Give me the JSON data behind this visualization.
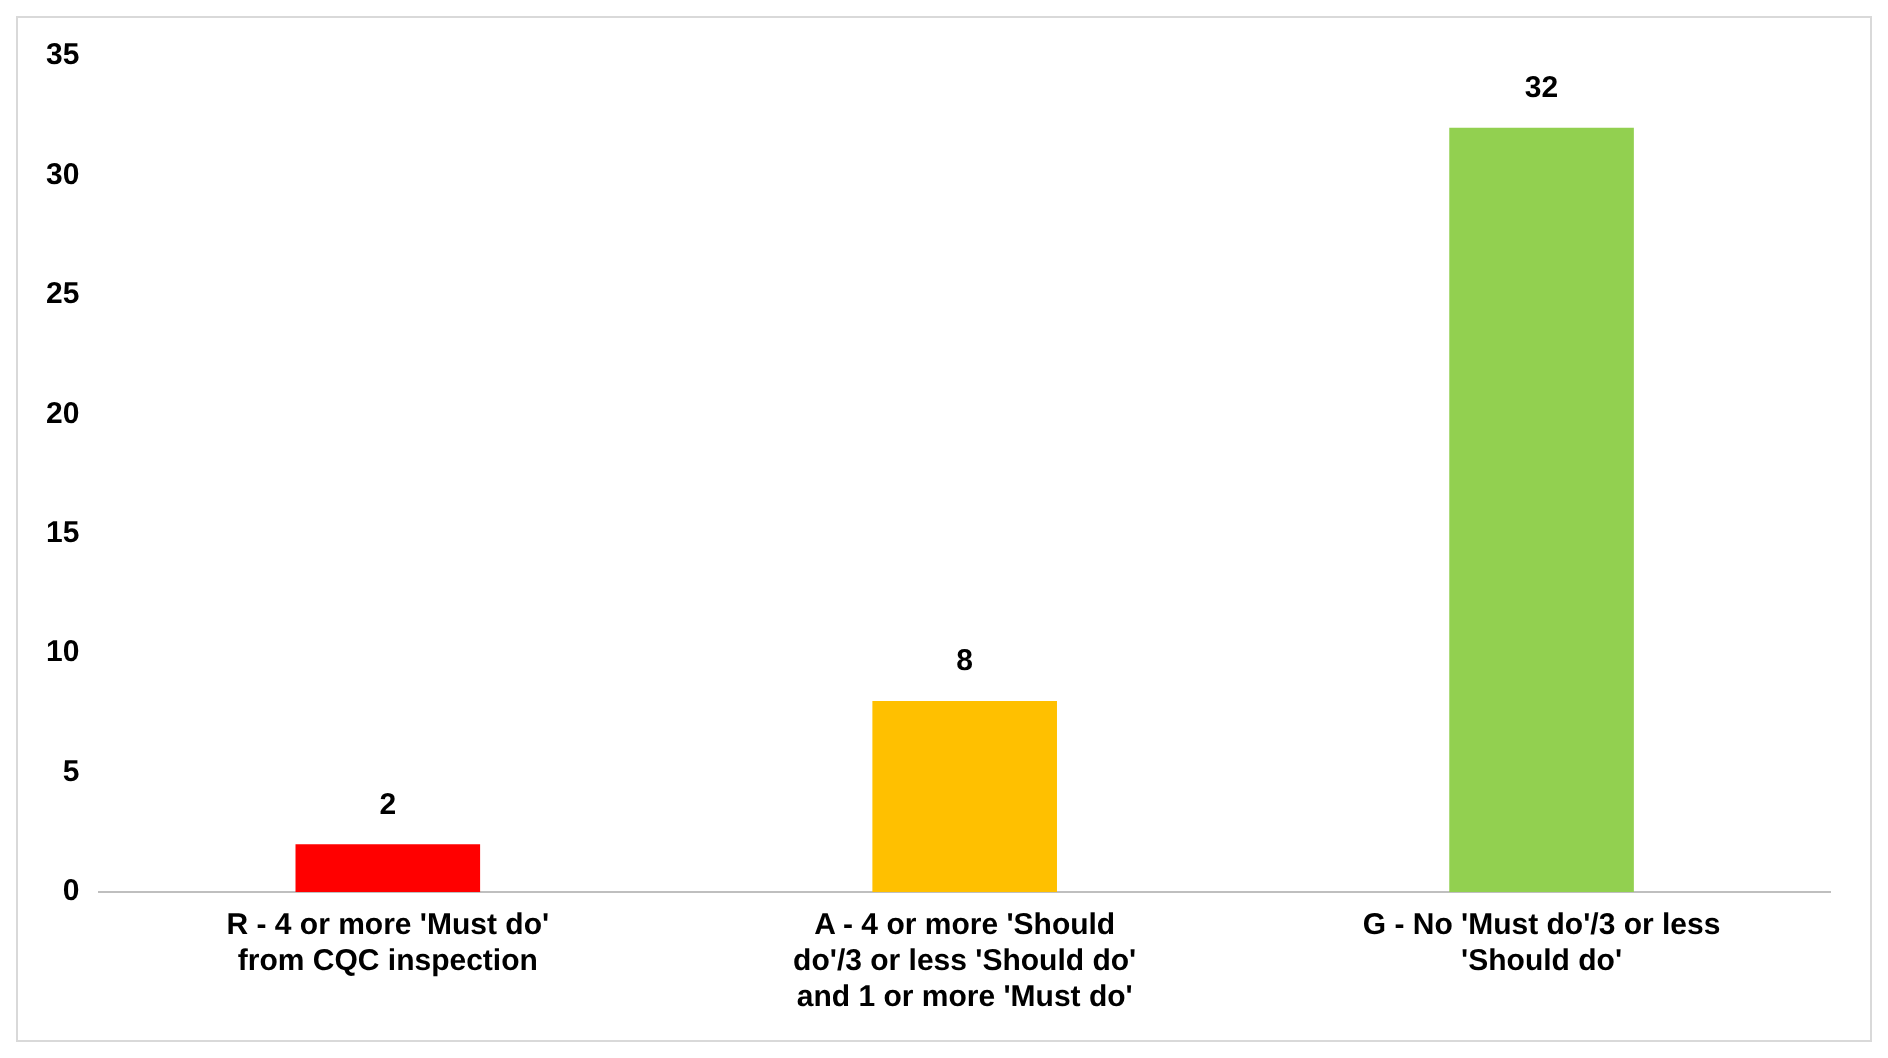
{
  "chart_data": {
    "type": "bar",
    "categories": [
      "R - 4 or more 'Must do' from CQC inspection",
      "A - 4 or more 'Should do'/3 or less 'Should do' and 1 or more 'Must do'",
      "G - No 'Must do'/3 or less 'Should do'"
    ],
    "values": [
      2,
      8,
      32
    ],
    "colors": [
      "#ff0000",
      "#ffc000",
      "#92d050"
    ],
    "ylim": [
      0,
      35
    ],
    "yticks": [
      0,
      5,
      10,
      15,
      20,
      25,
      30,
      35
    ],
    "grid": false,
    "legend": false,
    "data_labels": true
  }
}
